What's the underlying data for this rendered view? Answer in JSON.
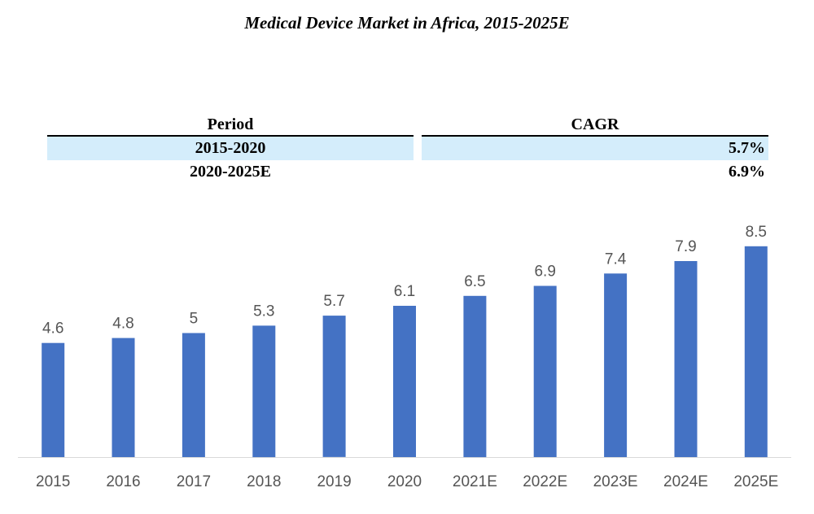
{
  "cagr_table": {
    "headers": {
      "period": "Period",
      "cagr": "CAGR"
    },
    "rows": [
      {
        "period": "2015-2020",
        "cagr": "5.7%"
      },
      {
        "period": "2020-2025E",
        "cagr": "6.9%"
      }
    ],
    "highlight_color": "#d4edfb"
  },
  "chart_data": {
    "type": "bar",
    "title": "Medical Device Market in Africa, 2015-2025E",
    "categories": [
      "2015",
      "2016",
      "2017",
      "2018",
      "2019",
      "2020",
      "2021E",
      "2022E",
      "2023E",
      "2024E",
      "2025E"
    ],
    "values": [
      4.6,
      4.8,
      5,
      5.3,
      5.7,
      6.1,
      6.5,
      6.9,
      7.4,
      7.9,
      8.5
    ],
    "data_labels": [
      "4.6",
      "4.8",
      "5",
      "5.3",
      "5.7",
      "6.1",
      "6.5",
      "6.9",
      "7.4",
      "7.9",
      "8.5"
    ],
    "xlabel": "",
    "ylabel": "",
    "ylim": [
      0,
      9
    ],
    "grid": false,
    "legend": "none",
    "bar_color": "#4472c4",
    "axis_color": "#d9d9d9"
  }
}
